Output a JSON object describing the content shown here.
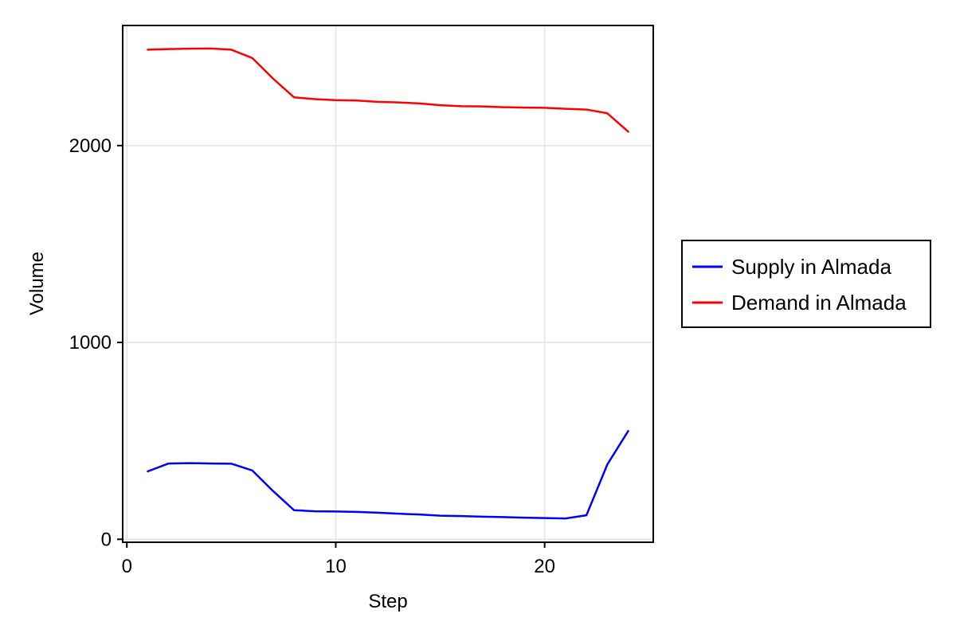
{
  "chart_data": {
    "type": "line",
    "title": "",
    "xlabel": "Step",
    "ylabel": "Volume",
    "xlim": [
      -0.2,
      25.2
    ],
    "ylim": [
      -15,
      2610
    ],
    "x_ticks": [
      0,
      10,
      20
    ],
    "y_ticks": [
      0,
      1000,
      2000
    ],
    "x_tick_labels": [
      "0",
      "10",
      "20"
    ],
    "y_tick_labels": [
      "0",
      "1000",
      "2000"
    ],
    "grid": true,
    "legend_position": "right",
    "x": [
      1,
      2,
      3,
      4,
      5,
      6,
      7,
      8,
      9,
      10,
      11,
      12,
      13,
      14,
      15,
      16,
      17,
      18,
      19,
      20,
      21,
      22,
      23,
      24
    ],
    "series": [
      {
        "name": "Supply in Almada",
        "color": "#0000ff",
        "values": [
          345,
          385,
          387,
          385,
          384,
          350,
          245,
          148,
          142,
          141,
          139,
          135,
          130,
          126,
          120,
          118,
          115,
          113,
          110,
          108,
          106,
          122,
          380,
          550
        ]
      },
      {
        "name": "Demand in Almada",
        "color": "#ff0000",
        "values": [
          2487,
          2490,
          2492,
          2493,
          2487,
          2445,
          2340,
          2245,
          2236,
          2231,
          2229,
          2222,
          2219,
          2214,
          2205,
          2200,
          2199,
          2195,
          2193,
          2192,
          2187,
          2183,
          2164,
          2071
        ]
      }
    ]
  }
}
